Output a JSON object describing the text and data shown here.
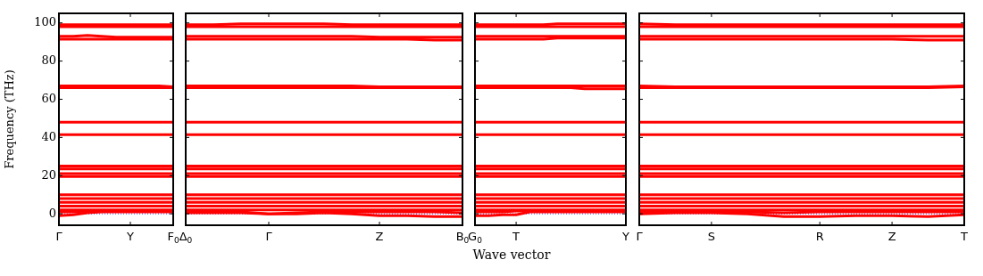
{
  "chart_data": [
    {
      "type": "line",
      "ylabel": "Frequency (THz)",
      "categories": [
        "Γ",
        null,
        null,
        null,
        null,
        "Y",
        null,
        null,
        "F$_{0}$"
      ],
      "ylim": [
        -6,
        105
      ],
      "yticks": [
        0,
        20,
        40,
        60,
        80,
        100
      ],
      "marker": "none",
      "ref_lines": [
        {
          "axis": "y",
          "value": 0,
          "color": "#0000ff",
          "line_style": "dotted"
        }
      ],
      "series": [
        {
          "color": "#ff0000",
          "values": [
            99,
            99,
            99,
            99,
            99,
            99,
            99,
            99,
            99
          ]
        },
        {
          "color": "#ff0000",
          "values": [
            98,
            98,
            98,
            98,
            98,
            98,
            98,
            98,
            98
          ]
        },
        {
          "color": "#ff0000",
          "values": [
            93,
            93,
            93.5,
            93,
            92.5,
            92.5,
            92.5,
            92.5,
            92.5
          ]
        },
        {
          "color": "#ff0000",
          "values": [
            91.5,
            91.5,
            91.5,
            91.5,
            91.5,
            91.5,
            91.5,
            91.5,
            91.5
          ]
        },
        {
          "color": "#ff0000",
          "values": [
            67,
            67,
            67,
            67,
            67,
            67,
            67,
            67,
            66.5
          ]
        },
        {
          "color": "#ff0000",
          "values": [
            66,
            66,
            66,
            66,
            66,
            66,
            66,
            66,
            66
          ]
        },
        {
          "color": "#ff0000",
          "values": [
            48,
            48,
            48,
            48,
            48,
            48,
            48,
            48,
            48
          ]
        },
        {
          "color": "#ff0000",
          "values": [
            41.5,
            41.5,
            41.5,
            41.5,
            41.5,
            41.5,
            41.5,
            41.5,
            41.5
          ]
        },
        {
          "color": "#ff0000",
          "values": [
            25,
            25,
            25,
            25,
            25,
            25,
            25,
            25,
            25
          ]
        },
        {
          "color": "#ff0000",
          "values": [
            23.5,
            23.5,
            23.5,
            23.5,
            23.5,
            23.5,
            23.5,
            23.5,
            23.5
          ]
        },
        {
          "color": "#ff0000",
          "values": [
            21,
            21,
            21,
            21,
            21,
            21,
            21,
            21,
            21
          ]
        },
        {
          "color": "#ff0000",
          "values": [
            19.5,
            19.5,
            19.5,
            19.5,
            19.5,
            19.5,
            19.5,
            19.5,
            19.5
          ]
        },
        {
          "color": "#ff0000",
          "values": [
            10,
            10,
            10,
            10,
            10,
            10,
            10,
            10,
            10
          ]
        },
        {
          "color": "#ff0000",
          "values": [
            8,
            8,
            8,
            8,
            8,
            8,
            8,
            8,
            8
          ]
        },
        {
          "color": "#ff0000",
          "values": [
            6,
            6,
            6,
            6,
            6,
            6,
            6,
            6,
            6
          ]
        },
        {
          "color": "#ff0000",
          "values": [
            4,
            4,
            4,
            4,
            4,
            4,
            4,
            4,
            4
          ]
        },
        {
          "color": "#ff0000",
          "values": [
            2,
            2,
            2,
            2,
            2,
            2,
            2,
            2,
            2
          ]
        },
        {
          "color": "#ff0000",
          "values": [
            1,
            1,
            1.5,
            1.5,
            1.5,
            1.5,
            1.5,
            1.5,
            1.5
          ]
        },
        {
          "color": "#ff0000",
          "values": [
            -1,
            -0.5,
            0.5,
            1,
            1,
            1,
            1,
            1,
            1
          ]
        }
      ]
    },
    {
      "type": "line",
      "categories": [
        "Δ$_{0}$",
        null,
        null,
        "Γ",
        null,
        null,
        null,
        "Z",
        null,
        null,
        "B$_{0}$"
      ],
      "ylim": [
        -6,
        105
      ],
      "yticks": [
        0,
        20,
        40,
        60,
        80,
        100
      ],
      "tick_labels": "x",
      "marker": "none",
      "ref_lines": [
        {
          "axis": "y",
          "value": 0,
          "color": "#0000ff",
          "line_style": "dotted"
        }
      ],
      "series": [
        {
          "color": "#ff0000",
          "values": [
            99,
            99,
            99.5,
            99.5,
            99.5,
            99.5,
            99,
            99,
            99,
            99,
            99
          ]
        },
        {
          "color": "#ff0000",
          "values": [
            98,
            98,
            98,
            98,
            98,
            98,
            98,
            98,
            98,
            98,
            98
          ]
        },
        {
          "color": "#ff0000",
          "values": [
            93,
            93,
            93,
            93,
            93,
            93,
            93,
            92.5,
            92.5,
            92.5,
            92.5
          ]
        },
        {
          "color": "#ff0000",
          "values": [
            91.5,
            91.5,
            91.5,
            91.5,
            91.5,
            91.5,
            91.5,
            91.5,
            91.5,
            91,
            91
          ]
        },
        {
          "color": "#ff0000",
          "values": [
            67,
            67,
            67,
            67,
            67,
            67,
            67,
            66.5,
            66.5,
            66.5,
            66.5
          ]
        },
        {
          "color": "#ff0000",
          "values": [
            66,
            66,
            66,
            66,
            66,
            66,
            66,
            66,
            66,
            66,
            66
          ]
        },
        {
          "color": "#ff0000",
          "values": [
            48,
            48,
            48,
            48,
            48,
            48,
            48,
            48,
            48,
            48,
            48
          ]
        },
        {
          "color": "#ff0000",
          "values": [
            41.5,
            41.5,
            41.5,
            41.5,
            41.5,
            41.5,
            41.5,
            41.5,
            41.5,
            41.5,
            41.5
          ]
        },
        {
          "color": "#ff0000",
          "values": [
            25,
            25,
            25,
            25,
            25,
            25,
            25,
            25,
            25,
            25,
            25
          ]
        },
        {
          "color": "#ff0000",
          "values": [
            23.5,
            23.5,
            23.5,
            23.5,
            23.5,
            23.5,
            23.5,
            23.5,
            23.5,
            23.5,
            23.5
          ]
        },
        {
          "color": "#ff0000",
          "values": [
            21,
            21,
            21,
            21,
            21,
            21,
            21,
            21,
            21,
            21,
            21
          ]
        },
        {
          "color": "#ff0000",
          "values": [
            19.5,
            19.5,
            19.5,
            19.5,
            19.5,
            19.5,
            19.5,
            19.5,
            19.5,
            19.5,
            19.5
          ]
        },
        {
          "color": "#ff0000",
          "values": [
            10,
            10,
            10,
            10,
            10,
            10,
            10,
            10,
            10,
            10,
            10
          ]
        },
        {
          "color": "#ff0000",
          "values": [
            8,
            8,
            8,
            8,
            8,
            8,
            8,
            8,
            8,
            8,
            8
          ]
        },
        {
          "color": "#ff0000",
          "values": [
            6,
            6,
            6,
            6,
            6,
            6,
            6,
            6,
            6,
            6,
            6
          ]
        },
        {
          "color": "#ff0000",
          "values": [
            4,
            4,
            4,
            4,
            4,
            4,
            4,
            4,
            4,
            4,
            4
          ]
        },
        {
          "color": "#ff0000",
          "values": [
            2,
            2,
            2,
            2,
            2,
            2,
            2,
            2,
            2,
            2,
            2
          ]
        },
        {
          "color": "#ff0000",
          "values": [
            1,
            1,
            1,
            0,
            0.5,
            1,
            1,
            1,
            1,
            1,
            0.5
          ]
        },
        {
          "color": "#ff0000",
          "values": [
            0.5,
            0.5,
            0.5,
            0,
            0,
            0.5,
            0,
            -1,
            -1,
            -1.5,
            -1.5
          ]
        }
      ]
    },
    {
      "type": "line",
      "xlabel": "Wave vector",
      "categories": [
        "G$_{0}$",
        null,
        null,
        "T",
        null,
        null,
        null,
        null,
        null,
        null,
        null,
        "Y"
      ],
      "ylim": [
        -6,
        105
      ],
      "yticks": [
        0,
        20,
        40,
        60,
        80,
        100
      ],
      "tick_labels": "x",
      "marker": "none",
      "ref_lines": [
        {
          "axis": "y",
          "value": 0,
          "color": "#0000ff",
          "line_style": "dotted"
        }
      ],
      "series": [
        {
          "color": "#ff0000",
          "values": [
            99,
            99,
            99,
            99,
            99,
            99,
            99.5,
            99.5,
            99.5,
            99.5,
            99.5,
            99.5
          ]
        },
        {
          "color": "#ff0000",
          "values": [
            98,
            98,
            98,
            98,
            98,
            98,
            98,
            98,
            98,
            98,
            98,
            98
          ]
        },
        {
          "color": "#ff0000",
          "values": [
            93,
            93,
            93,
            93,
            93,
            93,
            93,
            93,
            93,
            93,
            93,
            93
          ]
        },
        {
          "color": "#ff0000",
          "values": [
            91.5,
            91.5,
            91.5,
            91.5,
            91.5,
            91.5,
            92,
            92,
            92,
            92,
            92,
            92
          ]
        },
        {
          "color": "#ff0000",
          "values": [
            67,
            67,
            67,
            67,
            67,
            67,
            67,
            67,
            67,
            67,
            67,
            67
          ]
        },
        {
          "color": "#ff0000",
          "values": [
            66,
            66,
            66,
            66,
            66,
            66,
            66,
            66,
            65.5,
            65.5,
            65.5,
            65.5
          ]
        },
        {
          "color": "#ff0000",
          "values": [
            48,
            48,
            48,
            48,
            48,
            48,
            48,
            48,
            48,
            48,
            48,
            48
          ]
        },
        {
          "color": "#ff0000",
          "values": [
            41.5,
            41.5,
            41.5,
            41.5,
            41.5,
            41.5,
            41.5,
            41.5,
            41.5,
            41.5,
            41.5,
            41.5
          ]
        },
        {
          "color": "#ff0000",
          "values": [
            25,
            25,
            25,
            25,
            25,
            25,
            25,
            25,
            25,
            25,
            25,
            25
          ]
        },
        {
          "color": "#ff0000",
          "values": [
            23.5,
            23.5,
            23.5,
            23.5,
            23.5,
            23.5,
            23.5,
            23.5,
            23.5,
            23.5,
            23.5,
            23.5
          ]
        },
        {
          "color": "#ff0000",
          "values": [
            21,
            21,
            21,
            21,
            21,
            21,
            21,
            21,
            21,
            21,
            21,
            21
          ]
        },
        {
          "color": "#ff0000",
          "values": [
            19.5,
            19.5,
            19.5,
            19.5,
            19.5,
            19.5,
            19.5,
            19.5,
            19.5,
            19.5,
            19.5,
            19.5
          ]
        },
        {
          "color": "#ff0000",
          "values": [
            10,
            10,
            10,
            10,
            10,
            10,
            10,
            10,
            10,
            10,
            10,
            10
          ]
        },
        {
          "color": "#ff0000",
          "values": [
            8,
            8,
            8,
            8,
            8,
            8,
            8,
            8,
            8,
            8,
            8,
            8
          ]
        },
        {
          "color": "#ff0000",
          "values": [
            6,
            6,
            6,
            6,
            6,
            6,
            6,
            6,
            6,
            6,
            6,
            6
          ]
        },
        {
          "color": "#ff0000",
          "values": [
            4,
            4,
            4,
            4,
            4,
            4,
            4,
            4,
            4,
            4,
            4,
            4
          ]
        },
        {
          "color": "#ff0000",
          "values": [
            2,
            2,
            2,
            2,
            2,
            2,
            2,
            2,
            2,
            2,
            2,
            2
          ]
        },
        {
          "color": "#ff0000",
          "values": [
            1,
            1,
            1,
            1.5,
            1.5,
            1.5,
            1.5,
            1.5,
            1.5,
            1.5,
            1.5,
            1.5
          ]
        },
        {
          "color": "#ff0000",
          "values": [
            -1,
            -1,
            -0.5,
            -0.5,
            1,
            1,
            1,
            1,
            1,
            1,
            1,
            1
          ]
        }
      ]
    },
    {
      "type": "line",
      "categories": [
        "Γ",
        null,
        "S",
        null,
        null,
        "R",
        null,
        "Z",
        null,
        "T"
      ],
      "ylim": [
        -6,
        105
      ],
      "yticks": [
        0,
        20,
        40,
        60,
        80,
        100
      ],
      "tick_labels": "x",
      "marker": "none",
      "ref_lines": [
        {
          "axis": "y",
          "value": 0,
          "color": "#0000ff",
          "line_style": "dotted"
        }
      ],
      "series": [
        {
          "color": "#ff0000",
          "values": [
            99.5,
            99,
            99,
            99,
            99,
            99,
            99,
            99,
            99,
            99
          ]
        },
        {
          "color": "#ff0000",
          "values": [
            98,
            98,
            98,
            98,
            98,
            98,
            98,
            98,
            98,
            98
          ]
        },
        {
          "color": "#ff0000",
          "values": [
            93,
            93,
            93,
            93,
            93,
            93,
            93,
            93,
            93,
            93
          ]
        },
        {
          "color": "#ff0000",
          "values": [
            91.5,
            91.5,
            91.5,
            91.5,
            91.5,
            91.5,
            91.5,
            91.5,
            91,
            91
          ]
        },
        {
          "color": "#ff0000",
          "values": [
            67,
            66.5,
            66.5,
            66.5,
            66.5,
            66.5,
            66.5,
            66.5,
            66.5,
            67
          ]
        },
        {
          "color": "#ff0000",
          "values": [
            66,
            66,
            66,
            66,
            66,
            66,
            66,
            66,
            66,
            66.5
          ]
        },
        {
          "color": "#ff0000",
          "values": [
            48,
            48,
            48,
            48,
            48,
            48,
            48,
            48,
            48,
            48
          ]
        },
        {
          "color": "#ff0000",
          "values": [
            41.5,
            41.5,
            41.5,
            41.5,
            41.5,
            41.5,
            41.5,
            41.5,
            41.5,
            41.5
          ]
        },
        {
          "color": "#ff0000",
          "values": [
            25,
            25,
            25,
            25,
            25,
            25,
            25,
            25,
            25,
            25
          ]
        },
        {
          "color": "#ff0000",
          "values": [
            23.5,
            23.5,
            23.5,
            23.5,
            23.5,
            23.5,
            23.5,
            23.5,
            23.5,
            23.5
          ]
        },
        {
          "color": "#ff0000",
          "values": [
            21,
            21,
            21,
            21,
            21,
            21,
            21,
            21,
            21,
            21
          ]
        },
        {
          "color": "#ff0000",
          "values": [
            19.5,
            19.5,
            19.5,
            19.5,
            19.5,
            19.5,
            19.5,
            19.5,
            19.5,
            19.5
          ]
        },
        {
          "color": "#ff0000",
          "values": [
            10,
            10,
            10,
            10,
            10,
            10,
            10,
            10,
            10,
            10
          ]
        },
        {
          "color": "#ff0000",
          "values": [
            8,
            8,
            8,
            8,
            8,
            8,
            8,
            8,
            8,
            8
          ]
        },
        {
          "color": "#ff0000",
          "values": [
            6,
            6,
            6,
            6,
            6,
            6,
            6,
            6,
            6,
            6
          ]
        },
        {
          "color": "#ff0000",
          "values": [
            4,
            4,
            4,
            4,
            4,
            4,
            4,
            4,
            4,
            4
          ]
        },
        {
          "color": "#ff0000",
          "values": [
            2,
            2,
            2,
            2,
            2,
            2,
            2,
            2,
            2,
            2
          ]
        },
        {
          "color": "#ff0000",
          "values": [
            1,
            1,
            1,
            1,
            0.5,
            1,
            1,
            1,
            1,
            1
          ]
        },
        {
          "color": "#ff0000",
          "values": [
            0,
            0.5,
            0.5,
            0,
            -1.5,
            -1.5,
            -1,
            -1,
            -1.5,
            -0.5
          ]
        }
      ]
    }
  ]
}
